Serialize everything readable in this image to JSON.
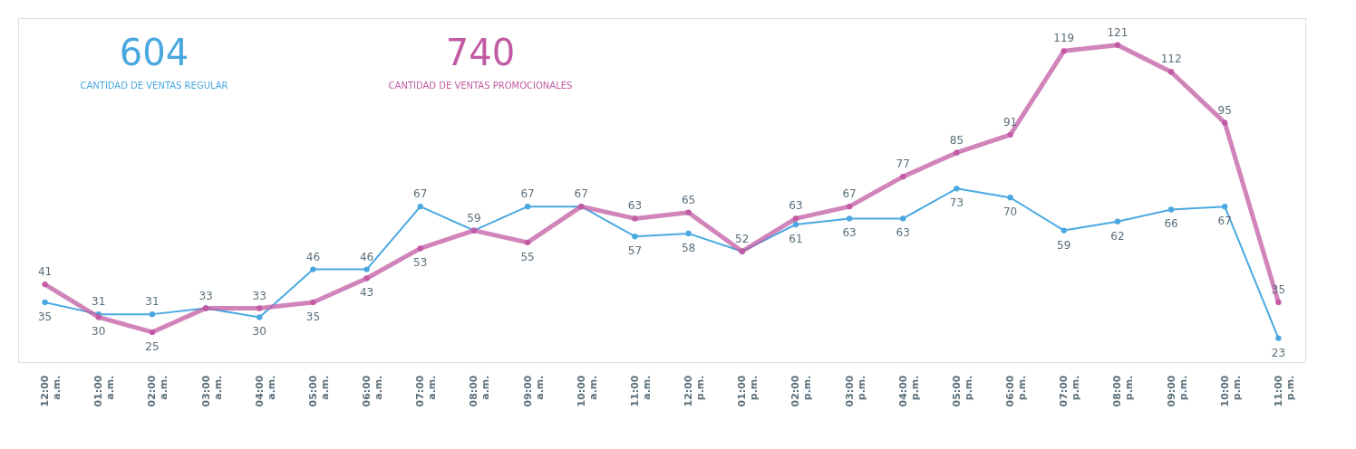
{
  "chart_data": {
    "type": "line",
    "categories": [
      "12:00 a.m.",
      "01:00 a.m.",
      "02:00 a.m.",
      "03:00 a.m.",
      "04:00 a.m.",
      "05:00 a.m.",
      "06:00 a.m.",
      "07:00 a.m.",
      "08:00 a.m.",
      "09:00 a.m.",
      "10:00 a.m.",
      "11:00 a.m.",
      "12:00 p.m.",
      "01:00 p.m.",
      "02:00 p.m.",
      "03:00 p.m.",
      "04:00 p.m.",
      "05:00 p.m.",
      "06:00 p.m.",
      "07:00 p.m.",
      "08:00 p.m.",
      "09:00 p.m.",
      "10:00 p.m.",
      "11:00 p.m."
    ],
    "series": [
      {
        "name": "CANTIDAD DE VENTAS REGULAR",
        "color": "#4aa8e0",
        "values": [
          35,
          31,
          31,
          33,
          30,
          46,
          46,
          67,
          59,
          67,
          67,
          57,
          58,
          52,
          61,
          63,
          63,
          73,
          70,
          59,
          62,
          66,
          67,
          23
        ],
        "value_labels": [
          "35",
          "31",
          "31",
          "33",
          "30",
          "46",
          "46",
          "67",
          "59",
          "67",
          "67",
          "57",
          "58",
          "52",
          "61",
          "63",
          "63",
          "73",
          "70",
          "59",
          "62",
          "66",
          "67",
          "23"
        ]
      },
      {
        "name": "CANTIDAD DE VENTAS PROMOCIONALES",
        "color": "#c25ba3",
        "values": [
          41,
          30,
          25,
          33,
          33,
          35,
          43,
          53,
          59,
          55,
          67,
          63,
          65,
          52,
          63,
          67,
          77,
          85,
          91,
          119,
          121,
          112,
          95,
          35
        ],
        "value_labels": [
          "41",
          "30",
          "25",
          null,
          "33",
          "35",
          "43",
          "53",
          null,
          "55",
          null,
          "63",
          "65",
          null,
          "63",
          "67",
          "77",
          "85",
          "91",
          "119",
          "121",
          "112",
          "95",
          "35"
        ]
      }
    ],
    "annotations": [
      "604",
      "740"
    ],
    "ylim": [
      15,
      130
    ],
    "tick_labels": "x",
    "grid": false,
    "marker": "circle"
  }
}
